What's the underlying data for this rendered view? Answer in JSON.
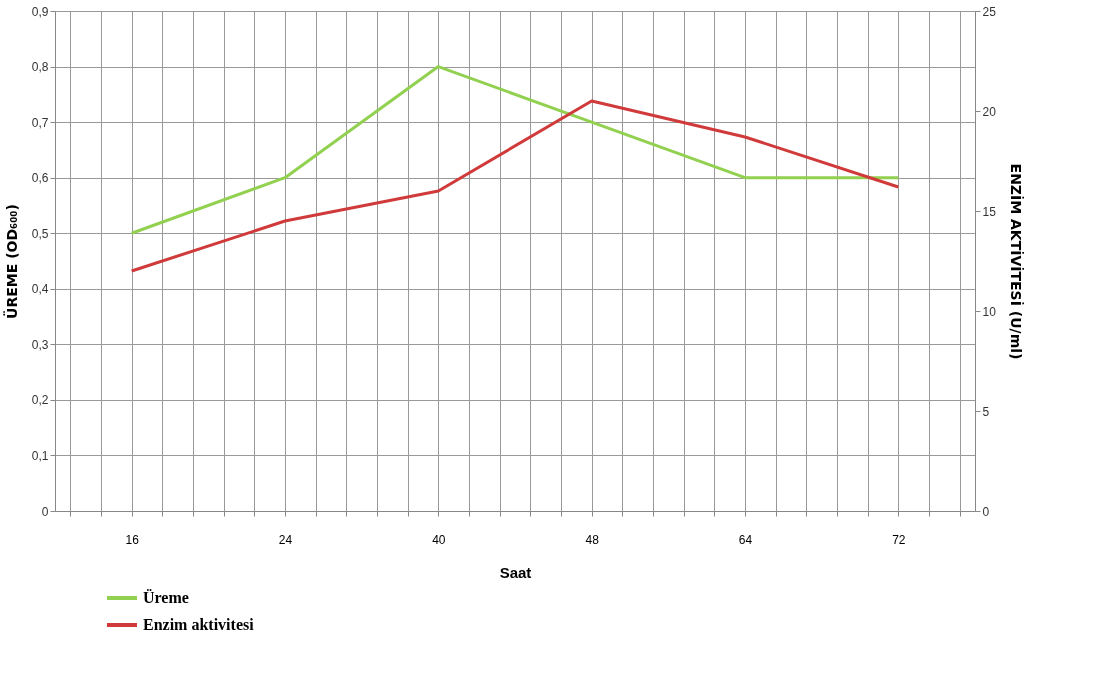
{
  "chart_data": {
    "type": "line",
    "categories": [
      "16",
      "24",
      "40",
      "48",
      "64",
      "72"
    ],
    "xlabel": "Saat",
    "ylabel": "ÜREME (OD₆₀₀)",
    "y2label": "ENZİM AKTİVİTESİ (U/ml)",
    "series": [
      {
        "name": "Üreme",
        "color": "#92d050",
        "values": [
          0.5,
          0.6,
          0.8,
          0.7,
          0.6,
          0.6
        ]
      },
      {
        "name": "Enzim aktivitesi",
        "color": "#d03a3a",
        "axis": "y2",
        "values": [
          12.0,
          14.5,
          16.0,
          20.5,
          18.7,
          16.2
        ]
      }
    ],
    "ylim": [
      0,
      0.9
    ],
    "yticks": [
      {
        "value": 0,
        "label": "0"
      },
      {
        "value": 0.1,
        "label": "0,1"
      },
      {
        "value": 0.2,
        "label": "0,2"
      },
      {
        "value": 0.3,
        "label": "0,3"
      },
      {
        "value": 0.4,
        "label": "0,4"
      },
      {
        "value": 0.5,
        "label": "0,5"
      },
      {
        "value": 0.6,
        "label": "0,6"
      },
      {
        "value": 0.7,
        "label": "0,7"
      },
      {
        "value": 0.8,
        "label": "0,8"
      },
      {
        "value": 0.9,
        "label": "0,9"
      }
    ],
    "y2lim": [
      0,
      25
    ],
    "y2ticks": [
      0,
      5,
      10,
      15,
      20,
      25
    ],
    "grid": true,
    "legend": "bottom left",
    "marker": "none",
    "line_style": "solid"
  }
}
